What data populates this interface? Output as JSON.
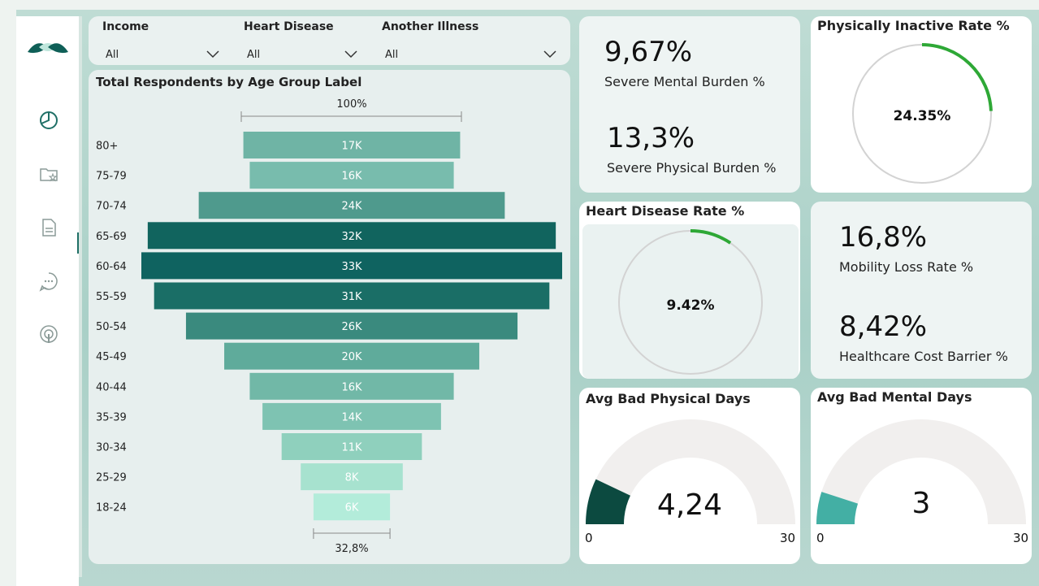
{
  "filters": [
    {
      "label": "Income",
      "value": "All"
    },
    {
      "label": "Heart Disease",
      "value": "All"
    },
    {
      "label": "Another Illness",
      "value": "All"
    }
  ],
  "funnel": {
    "title": "Total Respondents by Age Group Label",
    "top_percent_label": "100%",
    "bottom_percent_label": "32,8%",
    "chart_data": {
      "type": "bar",
      "orientation": "funnel",
      "categories": [
        "80+",
        "75-79",
        "70-74",
        "65-69",
        "60-64",
        "55-59",
        "50-54",
        "45-49",
        "40-44",
        "35-39",
        "30-34",
        "25-29",
        "18-24"
      ],
      "values": [
        17,
        16,
        24,
        32,
        33,
        31,
        26,
        20,
        16,
        14,
        11,
        8,
        6
      ],
      "value_labels": [
        "17K",
        "16K",
        "24K",
        "32K",
        "33K",
        "31K",
        "26K",
        "20K",
        "16K",
        "14K",
        "11K",
        "8K",
        "6K"
      ],
      "colors": [
        "#6fb4a5",
        "#78bcad",
        "#4f9a8d",
        "#11645e",
        "#0f6360",
        "#1a6e66",
        "#3a8a7e",
        "#5fab9b",
        "#71b8a7",
        "#7ec3b2",
        "#8fd0bd",
        "#a7e2cf",
        "#b3ecda"
      ]
    }
  },
  "kpis": {
    "mental_value": "9,67%",
    "mental_label": "Severe Mental Burden %",
    "physical_value": "13,3%",
    "physical_label": "Severe Physical Burden %",
    "mobility_value": "16,8%",
    "mobility_label": "Mobility Loss Rate %",
    "cost_value": "8,42%",
    "cost_label": "Healthcare Cost Barrier %"
  },
  "inactive": {
    "title": "Physically Inactive Rate %",
    "value": "24.35%",
    "fraction": 0.2435
  },
  "heart": {
    "title": "Heart Disease Rate %",
    "value": "9.42%",
    "fraction": 0.0942
  },
  "bad_physical": {
    "title": "Avg Bad Physical Days",
    "value": "4,24",
    "min": "0",
    "max": "30",
    "fraction": 0.1413,
    "color": "#0c4a40"
  },
  "bad_mental": {
    "title": "Avg Bad Mental Days",
    "value": "3",
    "min": "0",
    "max": "30",
    "fraction": 0.1,
    "color": "#43afa4"
  },
  "colors": {
    "accent_green": "#2ea836",
    "ring_gray": "#d3d3d3",
    "track_gray": "#f1efee"
  },
  "icons": [
    "logo-icon",
    "pie-chart-icon",
    "folder-star-icon",
    "document-icon",
    "chat-icon",
    "podcast-icon",
    "chevron-down-icon"
  ]
}
